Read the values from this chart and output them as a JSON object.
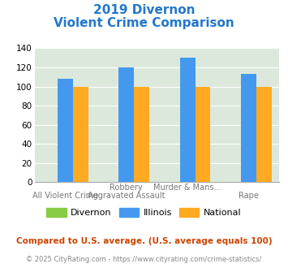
{
  "title_line1": "2019 Divernon",
  "title_line2": "Violent Crime Comparison",
  "title_color": "#2277cc",
  "top_labels": [
    "",
    "Robbery",
    "Murder & Mans...",
    ""
  ],
  "bot_labels": [
    "All Violent Crime",
    "Aggravated Assault",
    "",
    "Rape"
  ],
  "divernon": [
    0,
    0,
    0,
    0
  ],
  "illinois": [
    108,
    120,
    130,
    113
  ],
  "national": [
    100,
    100,
    100,
    100
  ],
  "bar_colors": {
    "divernon": "#88cc44",
    "illinois": "#4499ee",
    "national": "#ffaa22"
  },
  "ylim": [
    0,
    140
  ],
  "yticks": [
    0,
    20,
    40,
    60,
    80,
    100,
    120,
    140
  ],
  "legend_labels": [
    "Divernon",
    "Illinois",
    "National"
  ],
  "footnote1": "Compared to U.S. average. (U.S. average equals 100)",
  "footnote2": "© 2025 CityRating.com - https://www.cityrating.com/crime-statistics/",
  "footnote1_color": "#cc4400",
  "footnote2_color": "#888888",
  "plot_bg_color": "#dce8dc"
}
